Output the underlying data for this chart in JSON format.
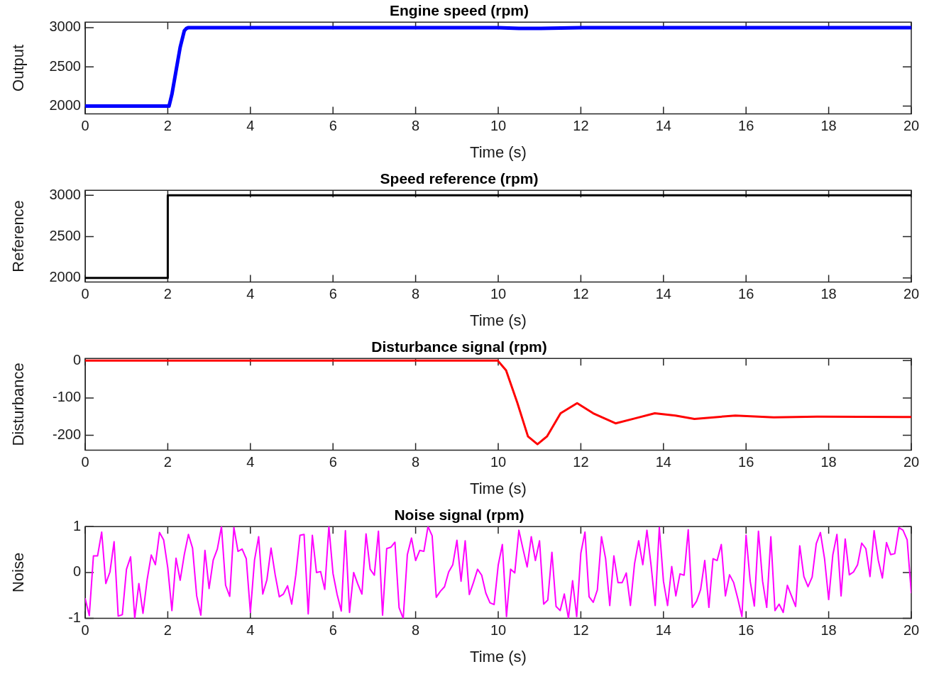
{
  "chart_data": [
    {
      "type": "line",
      "title": "Engine speed (rpm)",
      "xlabel": "Time (s)",
      "ylabel": "Output",
      "xlim": [
        0,
        20
      ],
      "xticks": [
        0,
        2,
        4,
        6,
        8,
        10,
        12,
        14,
        16,
        18,
        20
      ],
      "ylim": [
        1900,
        3070
      ],
      "yticks": [
        2000,
        2500,
        3000
      ],
      "grid": false,
      "legend": false,
      "series": [
        {
          "color": "#0000ff",
          "x": [
            0,
            2,
            2.03,
            2.1,
            2.2,
            2.3,
            2.4,
            2.45,
            2.5,
            10,
            10.5,
            11,
            12,
            20
          ],
          "values": [
            2000,
            2000,
            2000,
            2150,
            2450,
            2750,
            2960,
            2990,
            3000,
            3000,
            2990,
            2990,
            3000,
            3000
          ]
        }
      ]
    },
    {
      "type": "line",
      "title": "Speed reference (rpm)",
      "xlabel": "Time (s)",
      "ylabel": "Reference",
      "xlim": [
        0,
        20
      ],
      "xticks": [
        0,
        2,
        4,
        6,
        8,
        10,
        12,
        14,
        16,
        18,
        20
      ],
      "ylim": [
        1950,
        3060
      ],
      "yticks": [
        2000,
        2500,
        3000
      ],
      "grid": false,
      "legend": false,
      "series": [
        {
          "color": "#000000",
          "x": [
            0,
            2,
            2,
            20
          ],
          "values": [
            2000,
            2000,
            3000,
            3000
          ]
        }
      ]
    },
    {
      "type": "line",
      "title": "Disturbance signal (rpm)",
      "xlabel": "Time (s)",
      "ylabel": "Disturbance",
      "xlim": [
        0,
        20
      ],
      "xticks": [
        0,
        2,
        4,
        6,
        8,
        10,
        12,
        14,
        16,
        18,
        20
      ],
      "ylim": [
        -240,
        6
      ],
      "yticks": [
        -200,
        -100,
        0
      ],
      "grid": false,
      "legend": false,
      "series": [
        {
          "color": "#ff0000",
          "x": [
            0,
            9.99,
            10.19,
            10.46,
            10.72,
            10.95,
            11.18,
            11.51,
            11.91,
            12.3,
            12.84,
            13.3,
            13.79,
            14.29,
            14.75,
            15.74,
            16.67,
            17.72,
            20
          ],
          "values": [
            0,
            0,
            -26,
            -112,
            -203,
            -224,
            -203,
            -141,
            -114,
            -141,
            -168,
            -155,
            -141,
            -147,
            -156,
            -147,
            -152,
            -150,
            -151
          ]
        }
      ]
    },
    {
      "type": "line",
      "title": "Noise signal (rpm)",
      "xlabel": "Time (s)",
      "ylabel": "Noise",
      "xlim": [
        0,
        20
      ],
      "xticks": [
        0,
        2,
        4,
        6,
        8,
        10,
        12,
        14,
        16,
        18,
        20
      ],
      "ylim": [
        -1,
        1
      ],
      "yticks": [
        -1,
        0,
        1
      ],
      "grid": false,
      "legend": false,
      "series": [
        {
          "color": "#ff00ff",
          "x": [
            0,
            0.1,
            0.2,
            0.3,
            0.4,
            0.5,
            0.6,
            0.7,
            0.8,
            0.9,
            1,
            1.1,
            1.2,
            1.3,
            1.4,
            1.5,
            1.6,
            1.7,
            1.8,
            1.9,
            2,
            2.1,
            2.2,
            2.3,
            2.4,
            2.5,
            2.6,
            2.7,
            2.8,
            2.9,
            3,
            3.1,
            3.2,
            3.3,
            3.4,
            3.5,
            3.6,
            3.7,
            3.8,
            3.9,
            4,
            4.1,
            4.2,
            4.3,
            4.4,
            4.5,
            4.6,
            4.7,
            4.8,
            4.9,
            5,
            5.1,
            5.2,
            5.3,
            5.4,
            5.5,
            5.6,
            5.7,
            5.8,
            5.9,
            6,
            6.1,
            6.2,
            6.3,
            6.4,
            6.5,
            6.6,
            6.7,
            6.8,
            6.9,
            7,
            7.1,
            7.2,
            7.3,
            7.4,
            7.5,
            7.6,
            7.7,
            7.8,
            7.9,
            8,
            8.1,
            8.2,
            8.3,
            8.4,
            8.5,
            8.6,
            8.7,
            8.8,
            8.9,
            9,
            9.1,
            9.2,
            9.3,
            9.4,
            9.5,
            9.6,
            9.7,
            9.8,
            9.9,
            10,
            10.1,
            10.2,
            10.3,
            10.4,
            10.5,
            10.6,
            10.7,
            10.8,
            10.9,
            11,
            11.1,
            11.2,
            11.3,
            11.4,
            11.5,
            11.6,
            11.7,
            11.8,
            11.9,
            12,
            12.1,
            12.2,
            12.3,
            12.4,
            12.5,
            12.6,
            12.7,
            12.8,
            12.9,
            13,
            13.1,
            13.2,
            13.3,
            13.4,
            13.5,
            13.6,
            13.7,
            13.8,
            13.9,
            14,
            14.1,
            14.2,
            14.3,
            14.4,
            14.5,
            14.6,
            14.7,
            14.8,
            14.9,
            15,
            15.1,
            15.2,
            15.3,
            15.4,
            15.5,
            15.6,
            15.7,
            15.8,
            15.9,
            16,
            16.1,
            16.2,
            16.3,
            16.4,
            16.5,
            16.6,
            16.7,
            16.8,
            16.9,
            17,
            17.1,
            17.2,
            17.3,
            17.4,
            17.5,
            17.6,
            17.7,
            17.8,
            17.9,
            18,
            18.1,
            18.2,
            18.3,
            18.4,
            18.5,
            18.6,
            18.7,
            18.8,
            18.9,
            19,
            19.1,
            19.2,
            19.3,
            19.4,
            19.5,
            19.6,
            19.7,
            19.8,
            19.9,
            20
          ],
          "values": [
            -0.57,
            -0.94,
            0.36,
            0.36,
            0.88,
            -0.24,
            0.01,
            0.67,
            -0.95,
            -0.92,
            0.07,
            0.34,
            -1.0,
            -0.24,
            -0.89,
            -0.16,
            0.38,
            0.17,
            0.87,
            0.71,
            0.1,
            -0.83,
            0.31,
            -0.17,
            0.39,
            0.83,
            0.53,
            -0.51,
            -0.93,
            0.48,
            -0.35,
            0.27,
            0.51,
            1.0,
            -0.28,
            -0.52,
            0.98,
            0.46,
            0.51,
            0.3,
            -0.87,
            0.27,
            0.78,
            -0.47,
            -0.16,
            0.53,
            -0.05,
            -0.53,
            -0.47,
            -0.29,
            -0.69,
            -0.05,
            0.81,
            0.83,
            -0.9,
            0.81,
            0.0,
            0.02,
            -0.37,
            1.0,
            -0.02,
            -0.48,
            -0.84,
            0.91,
            -0.87,
            0.0,
            -0.25,
            -0.47,
            0.84,
            0.07,
            -0.06,
            0.9,
            -0.93,
            0.52,
            0.55,
            0.66,
            -0.77,
            -1.0,
            0.39,
            0.75,
            0.26,
            0.48,
            0.46,
            1.0,
            0.8,
            -0.54,
            -0.41,
            -0.31,
            0.01,
            0.17,
            0.7,
            -0.19,
            0.69,
            -0.48,
            -0.22,
            0.07,
            -0.06,
            -0.45,
            -0.66,
            -0.7,
            0.16,
            0.61,
            -0.96,
            0.07,
            -0.01,
            0.92,
            0.51,
            0.12,
            0.78,
            0.26,
            0.69,
            -0.69,
            -0.6,
            0.44,
            -0.74,
            -0.83,
            -0.47,
            -1.0,
            -0.18,
            -0.96,
            0.42,
            0.88,
            -0.53,
            -0.65,
            -0.38,
            0.78,
            0.3,
            -0.72,
            0.36,
            -0.22,
            -0.22,
            -0.01,
            -0.72,
            0.19,
            0.69,
            0.17,
            0.92,
            0.16,
            -0.72,
            0.98,
            -0.19,
            -0.72,
            0.13,
            -0.51,
            -0.03,
            -0.06,
            0.93,
            -0.76,
            -0.63,
            -0.37,
            0.26,
            -0.76,
            0.3,
            0.26,
            0.61,
            -0.51,
            -0.05,
            -0.22,
            -0.57,
            -0.96,
            0.81,
            -0.19,
            -0.73,
            0.9,
            -0.19,
            -0.76,
            0.78,
            -0.83,
            -0.69,
            -0.87,
            -0.28,
            -0.51,
            -0.74,
            0.58,
            -0.09,
            -0.31,
            -0.1,
            0.63,
            0.87,
            0.3,
            -0.59,
            0.38,
            0.83,
            -0.51,
            0.73,
            -0.05,
            0.01,
            0.17,
            0.64,
            0.52,
            -0.09,
            0.91,
            0.27,
            -0.12,
            0.65,
            0.39,
            0.41,
            0.98,
            0.92,
            0.71,
            -0.44
          ]
        }
      ]
    }
  ]
}
